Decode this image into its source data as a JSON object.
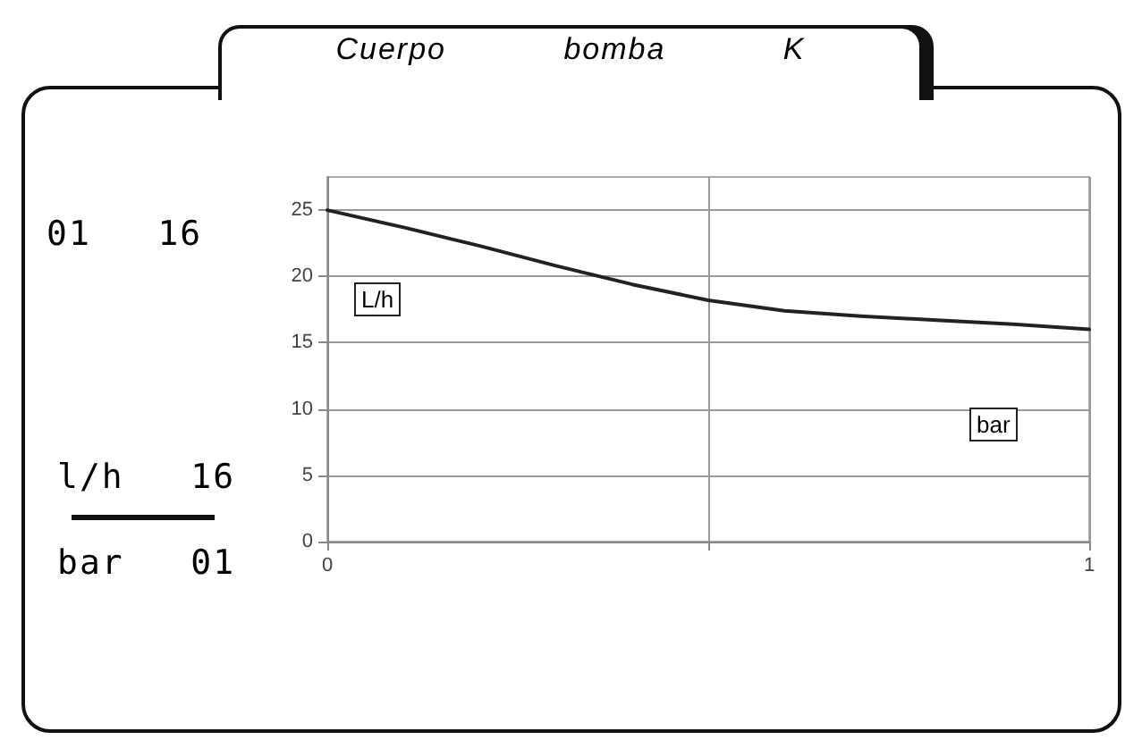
{
  "chart_data": {
    "type": "line",
    "title": "Cuerpo bomba K",
    "xlabel": "bar",
    "ylabel": "L/h",
    "annotations": [
      "01   16",
      "l/h   16",
      "bar   01"
    ],
    "x": [
      0,
      0.1,
      0.2,
      0.3,
      0.4,
      0.5,
      0.6,
      0.7,
      0.8,
      0.9,
      1
    ],
    "series": [
      {
        "color": "#222222",
        "values": [
          25,
          23.7,
          22.3,
          20.8,
          19.4,
          18.2,
          17.4,
          17.0,
          16.7,
          16.4,
          16.0
        ]
      }
    ],
    "xlim": [
      0,
      1
    ],
    "xticks": [
      0,
      {
        "value": 0.5,
        "label": null
      },
      1
    ],
    "ylim": [
      0,
      27.5
    ],
    "yticks": [
      0,
      5,
      10,
      15,
      20,
      25
    ],
    "grid": true,
    "marker": "none",
    "line_style": "solid"
  }
}
